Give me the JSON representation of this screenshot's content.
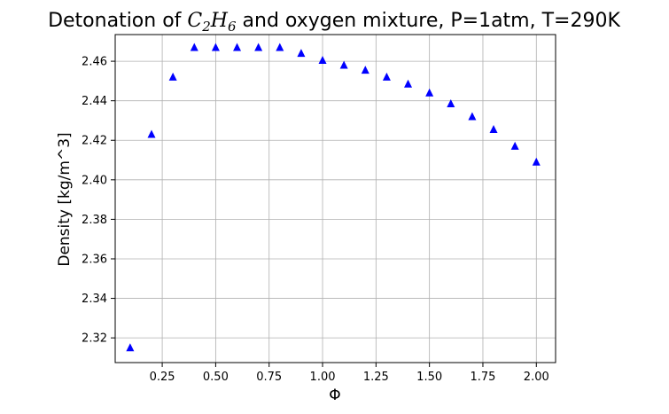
{
  "chart_data": {
    "type": "scatter",
    "title_parts": {
      "prefix": "Detonation of ",
      "formula_c": "C",
      "formula_c_sub": "2",
      "formula_h": "H",
      "formula_h_sub": "6",
      "suffix": " and oxygen mixture, P=1atm, T=290K"
    },
    "xlabel": "Φ",
    "ylabel": "Density [kg/m^3]",
    "xlim": [
      0.03,
      2.09
    ],
    "ylim": [
      2.3075,
      2.4735
    ],
    "x_ticks": [
      0.25,
      0.5,
      0.75,
      1.0,
      1.25,
      1.5,
      1.75,
      2.0
    ],
    "x_tick_labels": [
      "0.25",
      "0.50",
      "0.75",
      "1.00",
      "1.25",
      "1.50",
      "1.75",
      "2.00"
    ],
    "y_ticks": [
      2.32,
      2.34,
      2.36,
      2.38,
      2.4,
      2.42,
      2.44,
      2.46
    ],
    "y_tick_labels": [
      "2.32",
      "2.34",
      "2.36",
      "2.38",
      "2.40",
      "2.42",
      "2.44",
      "2.46"
    ],
    "grid": true,
    "marker": "triangle-up",
    "color": "#0000ff",
    "x": [
      0.1,
      0.2,
      0.3,
      0.4,
      0.5,
      0.6,
      0.7,
      0.8,
      0.9,
      1.0,
      1.1,
      1.2,
      1.3,
      1.4,
      1.5,
      1.6,
      1.7,
      1.8,
      1.9,
      2.0
    ],
    "y": [
      2.315,
      2.423,
      2.452,
      2.467,
      2.467,
      2.467,
      2.467,
      2.467,
      2.464,
      2.4605,
      2.458,
      2.4555,
      2.452,
      2.4485,
      2.444,
      2.4385,
      2.432,
      2.4255,
      2.417,
      2.409
    ]
  }
}
